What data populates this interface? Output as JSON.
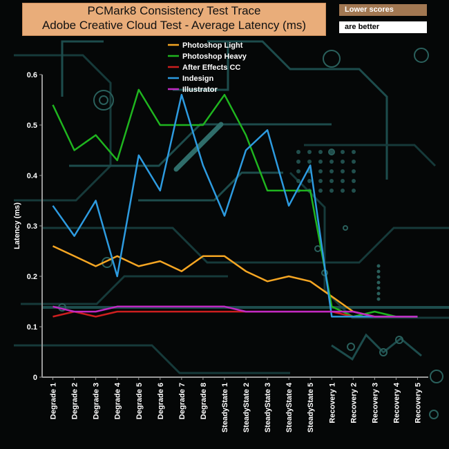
{
  "chart_data": {
    "type": "line",
    "title": "PCMark8 Consistency Test Trace",
    "subtitle": "Adobe Creative Cloud Test -  Average Latency (ms)",
    "note_lines": [
      "Lower scores",
      "are better"
    ],
    "xlabel": "",
    "ylabel": "Latency (ms)",
    "ylim": [
      0,
      0.6
    ],
    "yticks": [
      "0",
      "0.1",
      "0.2",
      "0.3",
      "0.4",
      "0.5",
      "0.6"
    ],
    "grid": false,
    "legend_position": "top-center",
    "categories": [
      "Degrade 1",
      "Degrade 2",
      "Degrade 3",
      "Degrade 4",
      "Degrade 5",
      "Degrade 6",
      "Degrade 7",
      "Degrade 8",
      "SteadyState 1",
      "SteadyState 2",
      "SteadyState 3",
      "SteadyState 4",
      "SteadyState 5",
      "Recovery 1",
      "Recovery 2",
      "Recovery 3",
      "Recovery 4",
      "Recovery 5"
    ],
    "series": [
      {
        "name": "Photoshop Light",
        "color": "#f5a623",
        "values": [
          0.26,
          0.24,
          0.22,
          0.24,
          0.22,
          0.23,
          0.21,
          0.24,
          0.24,
          0.21,
          0.19,
          0.2,
          0.19,
          0.16,
          0.13,
          0.12,
          0.12,
          0.12
        ]
      },
      {
        "name": " Photoshop Heavy",
        "color": "#1fb51f",
        "values": [
          0.54,
          0.45,
          0.48,
          0.43,
          0.57,
          0.5,
          0.5,
          0.5,
          0.56,
          0.48,
          0.37,
          0.37,
          0.37,
          0.14,
          0.12,
          0.13,
          0.12,
          0.12
        ]
      },
      {
        "name": "After Effects CC",
        "color": "#cc1f1f",
        "values": [
          0.12,
          0.13,
          0.12,
          0.13,
          0.13,
          0.13,
          0.13,
          0.13,
          0.13,
          0.13,
          0.13,
          0.13,
          0.13,
          0.13,
          0.12,
          0.12,
          0.12,
          0.12
        ]
      },
      {
        "name": "Indesign",
        "color": "#2d9be0",
        "values": [
          0.34,
          0.28,
          0.35,
          0.2,
          0.44,
          0.37,
          0.56,
          0.42,
          0.32,
          0.45,
          0.49,
          0.34,
          0.42,
          0.12,
          0.12,
          0.12,
          0.12,
          0.12
        ]
      },
      {
        "name": "Illustrator",
        "color": "#c02ac4",
        "values": [
          0.14,
          0.13,
          0.13,
          0.14,
          0.14,
          0.14,
          0.14,
          0.14,
          0.14,
          0.13,
          0.13,
          0.13,
          0.13,
          0.13,
          0.13,
          0.12,
          0.12,
          0.12
        ]
      }
    ]
  }
}
